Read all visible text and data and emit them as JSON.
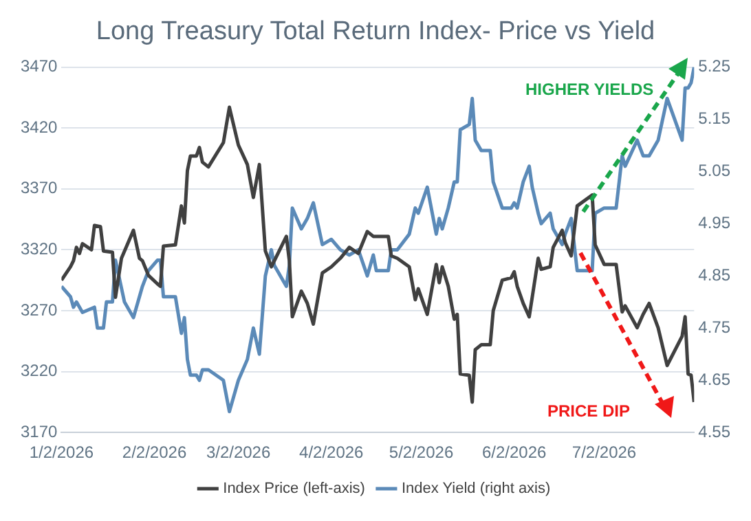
{
  "chart_data": {
    "type": "line",
    "title": "Long Treasury Total Return Index- Price vs Yield",
    "series": [
      {
        "name": "Index Price (left-axis)",
        "color": "#404040",
        "x": [
          "2026-01-02",
          "2026-01-05",
          "2026-01-06",
          "2026-01-07",
          "2026-01-08",
          "2026-01-09",
          "2026-01-12",
          "2026-01-13",
          "2026-01-15",
          "2026-01-16",
          "2026-01-19",
          "2026-01-20",
          "2026-01-22",
          "2026-01-26",
          "2026-01-28",
          "2026-01-29",
          "2026-01-31",
          "2026-02-03",
          "2026-02-04",
          "2026-02-05",
          "2026-02-09",
          "2026-02-11",
          "2026-02-12",
          "2026-02-13",
          "2026-02-14",
          "2026-02-16",
          "2026-02-17",
          "2026-02-18",
          "2026-02-20",
          "2026-02-25",
          "2026-02-27",
          "2026-03-02",
          "2026-03-05",
          "2026-03-07",
          "2026-03-09",
          "2026-03-11",
          "2026-03-13",
          "2026-03-14",
          "2026-03-18",
          "2026-03-19",
          "2026-03-20",
          "2026-03-23",
          "2026-03-25",
          "2026-03-27",
          "2026-03-30",
          "2026-04-02",
          "2026-04-05",
          "2026-04-08",
          "2026-04-11",
          "2026-04-14",
          "2026-04-16",
          "2026-04-17",
          "2026-04-21",
          "2026-04-22",
          "2026-04-24",
          "2026-04-28",
          "2026-04-30",
          "2026-05-01",
          "2026-05-04",
          "2026-05-07",
          "2026-05-08",
          "2026-05-09",
          "2026-05-11",
          "2026-05-13",
          "2026-05-14",
          "2026-05-15",
          "2026-05-18",
          "2026-05-19",
          "2026-05-20",
          "2026-05-22",
          "2026-05-25",
          "2026-05-26",
          "2026-05-29",
          "2026-06-01",
          "2026-06-02",
          "2026-06-03",
          "2026-06-05",
          "2026-06-07",
          "2026-06-08",
          "2026-06-10",
          "2026-06-11",
          "2026-06-14",
          "2026-06-15",
          "2026-06-18",
          "2026-06-19",
          "2026-06-21",
          "2026-06-23",
          "2026-06-28",
          "2026-06-29",
          "2026-07-02",
          "2026-07-06",
          "2026-07-08",
          "2026-07-09",
          "2026-07-13",
          "2026-07-15",
          "2026-07-17",
          "2026-07-20",
          "2026-07-23",
          "2026-07-28",
          "2026-07-29",
          "2026-07-30",
          "2026-07-31",
          "2026-08-01"
        ],
        "values": [
          3295,
          3306,
          3311,
          3322,
          3317,
          3325,
          3320,
          3340,
          3339,
          3319,
          3318,
          3281,
          3313,
          3336,
          3313,
          3311,
          3299,
          3292,
          3290,
          3323,
          3324,
          3356,
          3342,
          3385,
          3397,
          3397,
          3404,
          3392,
          3388,
          3408,
          3437,
          3406,
          3390,
          3363,
          3390,
          3319,
          3306,
          3311,
          3331,
          3311,
          3265,
          3286,
          3276,
          3259,
          3301,
          3306,
          3313,
          3322,
          3317,
          3335,
          3331,
          3331,
          3331,
          3315,
          3313,
          3306,
          3279,
          3288,
          3267,
          3308,
          3293,
          3306,
          3290,
          3263,
          3267,
          3218,
          3217,
          3195,
          3238,
          3242,
          3242,
          3270,
          3295,
          3297,
          3302,
          3290,
          3276,
          3265,
          3281,
          3313,
          3304,
          3306,
          3322,
          3336,
          3326,
          3315,
          3356,
          3365,
          3324,
          3308,
          3308,
          3269,
          3274,
          3256,
          3267,
          3276,
          3256,
          3225,
          3249,
          3265,
          3218,
          3217,
          3195
        ]
      },
      {
        "name": "Index Yield (right axis)",
        "color": "#5b8ab8",
        "axis": "y2",
        "x": [
          "2026-01-02",
          "2026-01-05",
          "2026-01-06",
          "2026-01-07",
          "2026-01-09",
          "2026-01-13",
          "2026-01-14",
          "2026-01-16",
          "2026-01-17",
          "2026-01-19",
          "2026-01-20",
          "2026-01-23",
          "2026-01-26",
          "2026-01-28",
          "2026-01-29",
          "2026-01-31",
          "2026-02-03",
          "2026-02-04",
          "2026-02-05",
          "2026-02-09",
          "2026-02-11",
          "2026-02-12",
          "2026-02-13",
          "2026-02-14",
          "2026-02-16",
          "2026-02-17",
          "2026-02-18",
          "2026-02-20",
          "2026-02-25",
          "2026-02-27",
          "2026-03-02",
          "2026-03-05",
          "2026-03-07",
          "2026-03-09",
          "2026-03-11",
          "2026-03-13",
          "2026-03-14",
          "2026-03-18",
          "2026-03-19",
          "2026-03-20",
          "2026-03-23",
          "2026-03-25",
          "2026-03-27",
          "2026-03-30",
          "2026-04-02",
          "2026-04-05",
          "2026-04-08",
          "2026-04-11",
          "2026-04-14",
          "2026-04-16",
          "2026-04-17",
          "2026-04-21",
          "2026-04-22",
          "2026-04-24",
          "2026-04-28",
          "2026-04-30",
          "2026-05-01",
          "2026-05-04",
          "2026-05-07",
          "2026-05-08",
          "2026-05-09",
          "2026-05-11",
          "2026-05-13",
          "2026-05-14",
          "2026-05-15",
          "2026-05-18",
          "2026-05-19",
          "2026-05-20",
          "2026-05-22",
          "2026-05-25",
          "2026-05-26",
          "2026-05-29",
          "2026-06-01",
          "2026-06-02",
          "2026-06-03",
          "2026-06-05",
          "2026-06-07",
          "2026-06-08",
          "2026-06-10",
          "2026-06-11",
          "2026-06-14",
          "2026-06-15",
          "2026-06-18",
          "2026-06-19",
          "2026-06-21",
          "2026-06-23",
          "2026-06-28",
          "2026-06-29",
          "2026-07-02",
          "2026-07-06",
          "2026-07-08",
          "2026-07-09",
          "2026-07-13",
          "2026-07-15",
          "2026-07-17",
          "2026-07-20",
          "2026-07-23",
          "2026-07-28",
          "2026-07-29",
          "2026-07-30",
          "2026-07-31",
          "2026-08-01"
        ],
        "values": [
          4.83,
          4.81,
          4.79,
          4.8,
          4.78,
          4.79,
          4.75,
          4.75,
          4.8,
          4.8,
          4.88,
          4.8,
          4.77,
          4.81,
          4.83,
          4.86,
          4.88,
          4.88,
          4.81,
          4.81,
          4.74,
          4.77,
          4.69,
          4.66,
          4.66,
          4.65,
          4.67,
          4.67,
          4.65,
          4.59,
          4.65,
          4.69,
          4.75,
          4.7,
          4.85,
          4.9,
          4.87,
          4.83,
          4.87,
          4.98,
          4.94,
          4.96,
          4.99,
          4.91,
          4.92,
          4.9,
          4.89,
          4.9,
          4.85,
          4.89,
          4.86,
          4.86,
          4.9,
          4.9,
          4.93,
          4.98,
          4.97,
          5.02,
          4.93,
          4.96,
          4.94,
          4.98,
          5.03,
          5.03,
          5.13,
          5.14,
          5.19,
          5.11,
          5.09,
          5.09,
          5.03,
          4.98,
          4.98,
          4.99,
          4.98,
          5.03,
          5.06,
          5.02,
          4.97,
          4.95,
          4.97,
          4.94,
          4.91,
          4.93,
          4.96,
          4.86,
          4.86,
          4.97,
          4.98,
          4.98,
          5.08,
          5.06,
          5.11,
          5.08,
          5.08,
          5.11,
          5.19,
          5.11,
          5.21,
          5.21,
          5.22,
          5.25
        ]
      }
    ],
    "xlim": [
      "2026-01-02",
      "2026-08-01"
    ],
    "xticks": [
      {
        "value": "2026-01-02",
        "label": "1/2/2026"
      },
      {
        "value": "2026-02-02",
        "label": "2/2/2026"
      },
      {
        "value": "2026-03-02",
        "label": "3/2/2026"
      },
      {
        "value": "2026-04-02",
        "label": "4/2/2026"
      },
      {
        "value": "2026-05-02",
        "label": "5/2/2026"
      },
      {
        "value": "2026-06-02",
        "label": "6/2/2026"
      },
      {
        "value": "2026-07-02",
        "label": "7/2/2026"
      }
    ],
    "ylim": [
      3170,
      3470
    ],
    "yticks": [
      3170,
      3220,
      3270,
      3320,
      3370,
      3420,
      3470
    ],
    "y2lim": [
      4.55,
      5.25
    ],
    "y2ticks": [
      4.55,
      4.65,
      4.75,
      4.85,
      4.95,
      5.05,
      5.15,
      5.25
    ],
    "grid": "y",
    "legend": "bottom",
    "marker": "none",
    "line_style": "solid",
    "annotations": [
      "HIGHER YIELDS",
      "PRICE DIP"
    ]
  }
}
